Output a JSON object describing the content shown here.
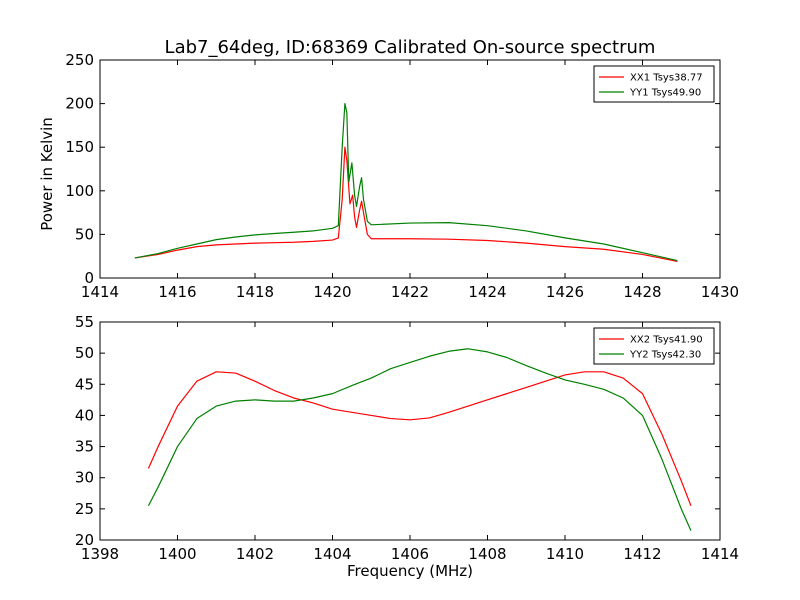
{
  "chart_data": [
    {
      "type": "line",
      "title": "Lab7_64deg, ID:68369 Calibrated On-source spectrum",
      "xlabel": "",
      "ylabel": "Power in Kelvin",
      "xlim": [
        1414,
        1430
      ],
      "ylim": [
        0,
        250
      ],
      "xticks": [
        "1414",
        "1416",
        "1418",
        "1420",
        "1422",
        "1424",
        "1426",
        "1428",
        "1430"
      ],
      "yticks": [
        "0",
        "50",
        "100",
        "150",
        "200",
        "250"
      ],
      "grid": false,
      "legend_position": "top-right",
      "series": [
        {
          "name": "XX1 Tsys38.77",
          "color": "#ff0000",
          "points": [
            [
              1414.9,
              23
            ],
            [
              1415.5,
              27
            ],
            [
              1416.0,
              32
            ],
            [
              1416.5,
              36
            ],
            [
              1417.0,
              38
            ],
            [
              1417.5,
              39
            ],
            [
              1418.0,
              40
            ],
            [
              1418.5,
              40.5
            ],
            [
              1419.0,
              41
            ],
            [
              1419.5,
              42
            ],
            [
              1420.0,
              43.5
            ],
            [
              1420.15,
              46
            ],
            [
              1420.25,
              90
            ],
            [
              1420.32,
              150
            ],
            [
              1420.37,
              135
            ],
            [
              1420.45,
              85
            ],
            [
              1420.52,
              95
            ],
            [
              1420.57,
              70
            ],
            [
              1420.62,
              58
            ],
            [
              1420.7,
              78
            ],
            [
              1420.75,
              88
            ],
            [
              1420.8,
              75
            ],
            [
              1420.9,
              50
            ],
            [
              1421.0,
              45
            ],
            [
              1422.0,
              45
            ],
            [
              1423.0,
              44.5
            ],
            [
              1424.0,
              43
            ],
            [
              1425.0,
              40
            ],
            [
              1426.0,
              36
            ],
            [
              1427.0,
              33
            ],
            [
              1428.0,
              27
            ],
            [
              1428.9,
              19
            ]
          ]
        },
        {
          "name": "YY1 Tsys49.90",
          "color": "#008000",
          "points": [
            [
              1414.9,
              23
            ],
            [
              1415.5,
              28
            ],
            [
              1416.0,
              34
            ],
            [
              1416.5,
              39
            ],
            [
              1417.0,
              44
            ],
            [
              1417.5,
              47
            ],
            [
              1418.0,
              49.5
            ],
            [
              1418.5,
              51
            ],
            [
              1419.0,
              52.5
            ],
            [
              1419.5,
              54
            ],
            [
              1420.0,
              57
            ],
            [
              1420.15,
              60
            ],
            [
              1420.25,
              150
            ],
            [
              1420.32,
              200
            ],
            [
              1420.37,
              190
            ],
            [
              1420.42,
              110
            ],
            [
              1420.5,
              132
            ],
            [
              1420.57,
              95
            ],
            [
              1420.62,
              82
            ],
            [
              1420.7,
              105
            ],
            [
              1420.75,
              115
            ],
            [
              1420.8,
              90
            ],
            [
              1420.9,
              65
            ],
            [
              1421.0,
              61
            ],
            [
              1422.0,
              63
            ],
            [
              1423.0,
              63.5
            ],
            [
              1424.0,
              60
            ],
            [
              1425.0,
              54
            ],
            [
              1426.0,
              46
            ],
            [
              1427.0,
              39
            ],
            [
              1428.0,
              29
            ],
            [
              1428.9,
              20
            ]
          ]
        }
      ]
    },
    {
      "type": "line",
      "title": "",
      "xlabel": "Frequency (MHz)",
      "ylabel": "",
      "xlim": [
        1398,
        1414
      ],
      "ylim": [
        20,
        55
      ],
      "xticks": [
        "1398",
        "1400",
        "1402",
        "1404",
        "1406",
        "1408",
        "1410",
        "1412",
        "1414"
      ],
      "yticks": [
        "20",
        "25",
        "30",
        "35",
        "40",
        "45",
        "50",
        "55"
      ],
      "grid": false,
      "legend_position": "top-right",
      "series": [
        {
          "name": "XX2 Tsys41.90",
          "color": "#ff0000",
          "points": [
            [
              1399.25,
              31.5
            ],
            [
              1399.5,
              35
            ],
            [
              1400.0,
              41.5
            ],
            [
              1400.5,
              45.5
            ],
            [
              1401.0,
              47
            ],
            [
              1401.5,
              46.8
            ],
            [
              1402.0,
              45.5
            ],
            [
              1402.5,
              44
            ],
            [
              1403.0,
              42.8
            ],
            [
              1403.5,
              42
            ],
            [
              1404.0,
              41
            ],
            [
              1404.5,
              40.5
            ],
            [
              1405.0,
              40
            ],
            [
              1405.5,
              39.5
            ],
            [
              1406.0,
              39.3
            ],
            [
              1406.5,
              39.6
            ],
            [
              1407.0,
              40.5
            ],
            [
              1407.5,
              41.5
            ],
            [
              1408.0,
              42.5
            ],
            [
              1408.5,
              43.5
            ],
            [
              1409.0,
              44.5
            ],
            [
              1409.5,
              45.5
            ],
            [
              1410.0,
              46.5
            ],
            [
              1410.5,
              47
            ],
            [
              1411.0,
              47
            ],
            [
              1411.5,
              46
            ],
            [
              1412.0,
              43.5
            ],
            [
              1412.5,
              37
            ],
            [
              1413.0,
              29.5
            ],
            [
              1413.25,
              25.5
            ]
          ]
        },
        {
          "name": "YY2 Tsys42.30",
          "color": "#008000",
          "points": [
            [
              1399.25,
              25.5
            ],
            [
              1399.5,
              28.5
            ],
            [
              1400.0,
              35
            ],
            [
              1400.5,
              39.5
            ],
            [
              1401.0,
              41.5
            ],
            [
              1401.5,
              42.3
            ],
            [
              1402.0,
              42.5
            ],
            [
              1402.5,
              42.3
            ],
            [
              1403.0,
              42.3
            ],
            [
              1403.5,
              42.8
            ],
            [
              1404.0,
              43.5
            ],
            [
              1404.5,
              44.8
            ],
            [
              1405.0,
              46
            ],
            [
              1405.5,
              47.5
            ],
            [
              1406.0,
              48.5
            ],
            [
              1406.5,
              49.5
            ],
            [
              1407.0,
              50.3
            ],
            [
              1407.5,
              50.7
            ],
            [
              1408.0,
              50.2
            ],
            [
              1408.5,
              49.3
            ],
            [
              1409.0,
              48
            ],
            [
              1409.5,
              46.8
            ],
            [
              1410.0,
              45.7
            ],
            [
              1410.5,
              45
            ],
            [
              1411.0,
              44.2
            ],
            [
              1411.5,
              42.8
            ],
            [
              1412.0,
              40
            ],
            [
              1412.5,
              33
            ],
            [
              1413.0,
              25
            ],
            [
              1413.25,
              21.5
            ]
          ]
        }
      ]
    }
  ]
}
